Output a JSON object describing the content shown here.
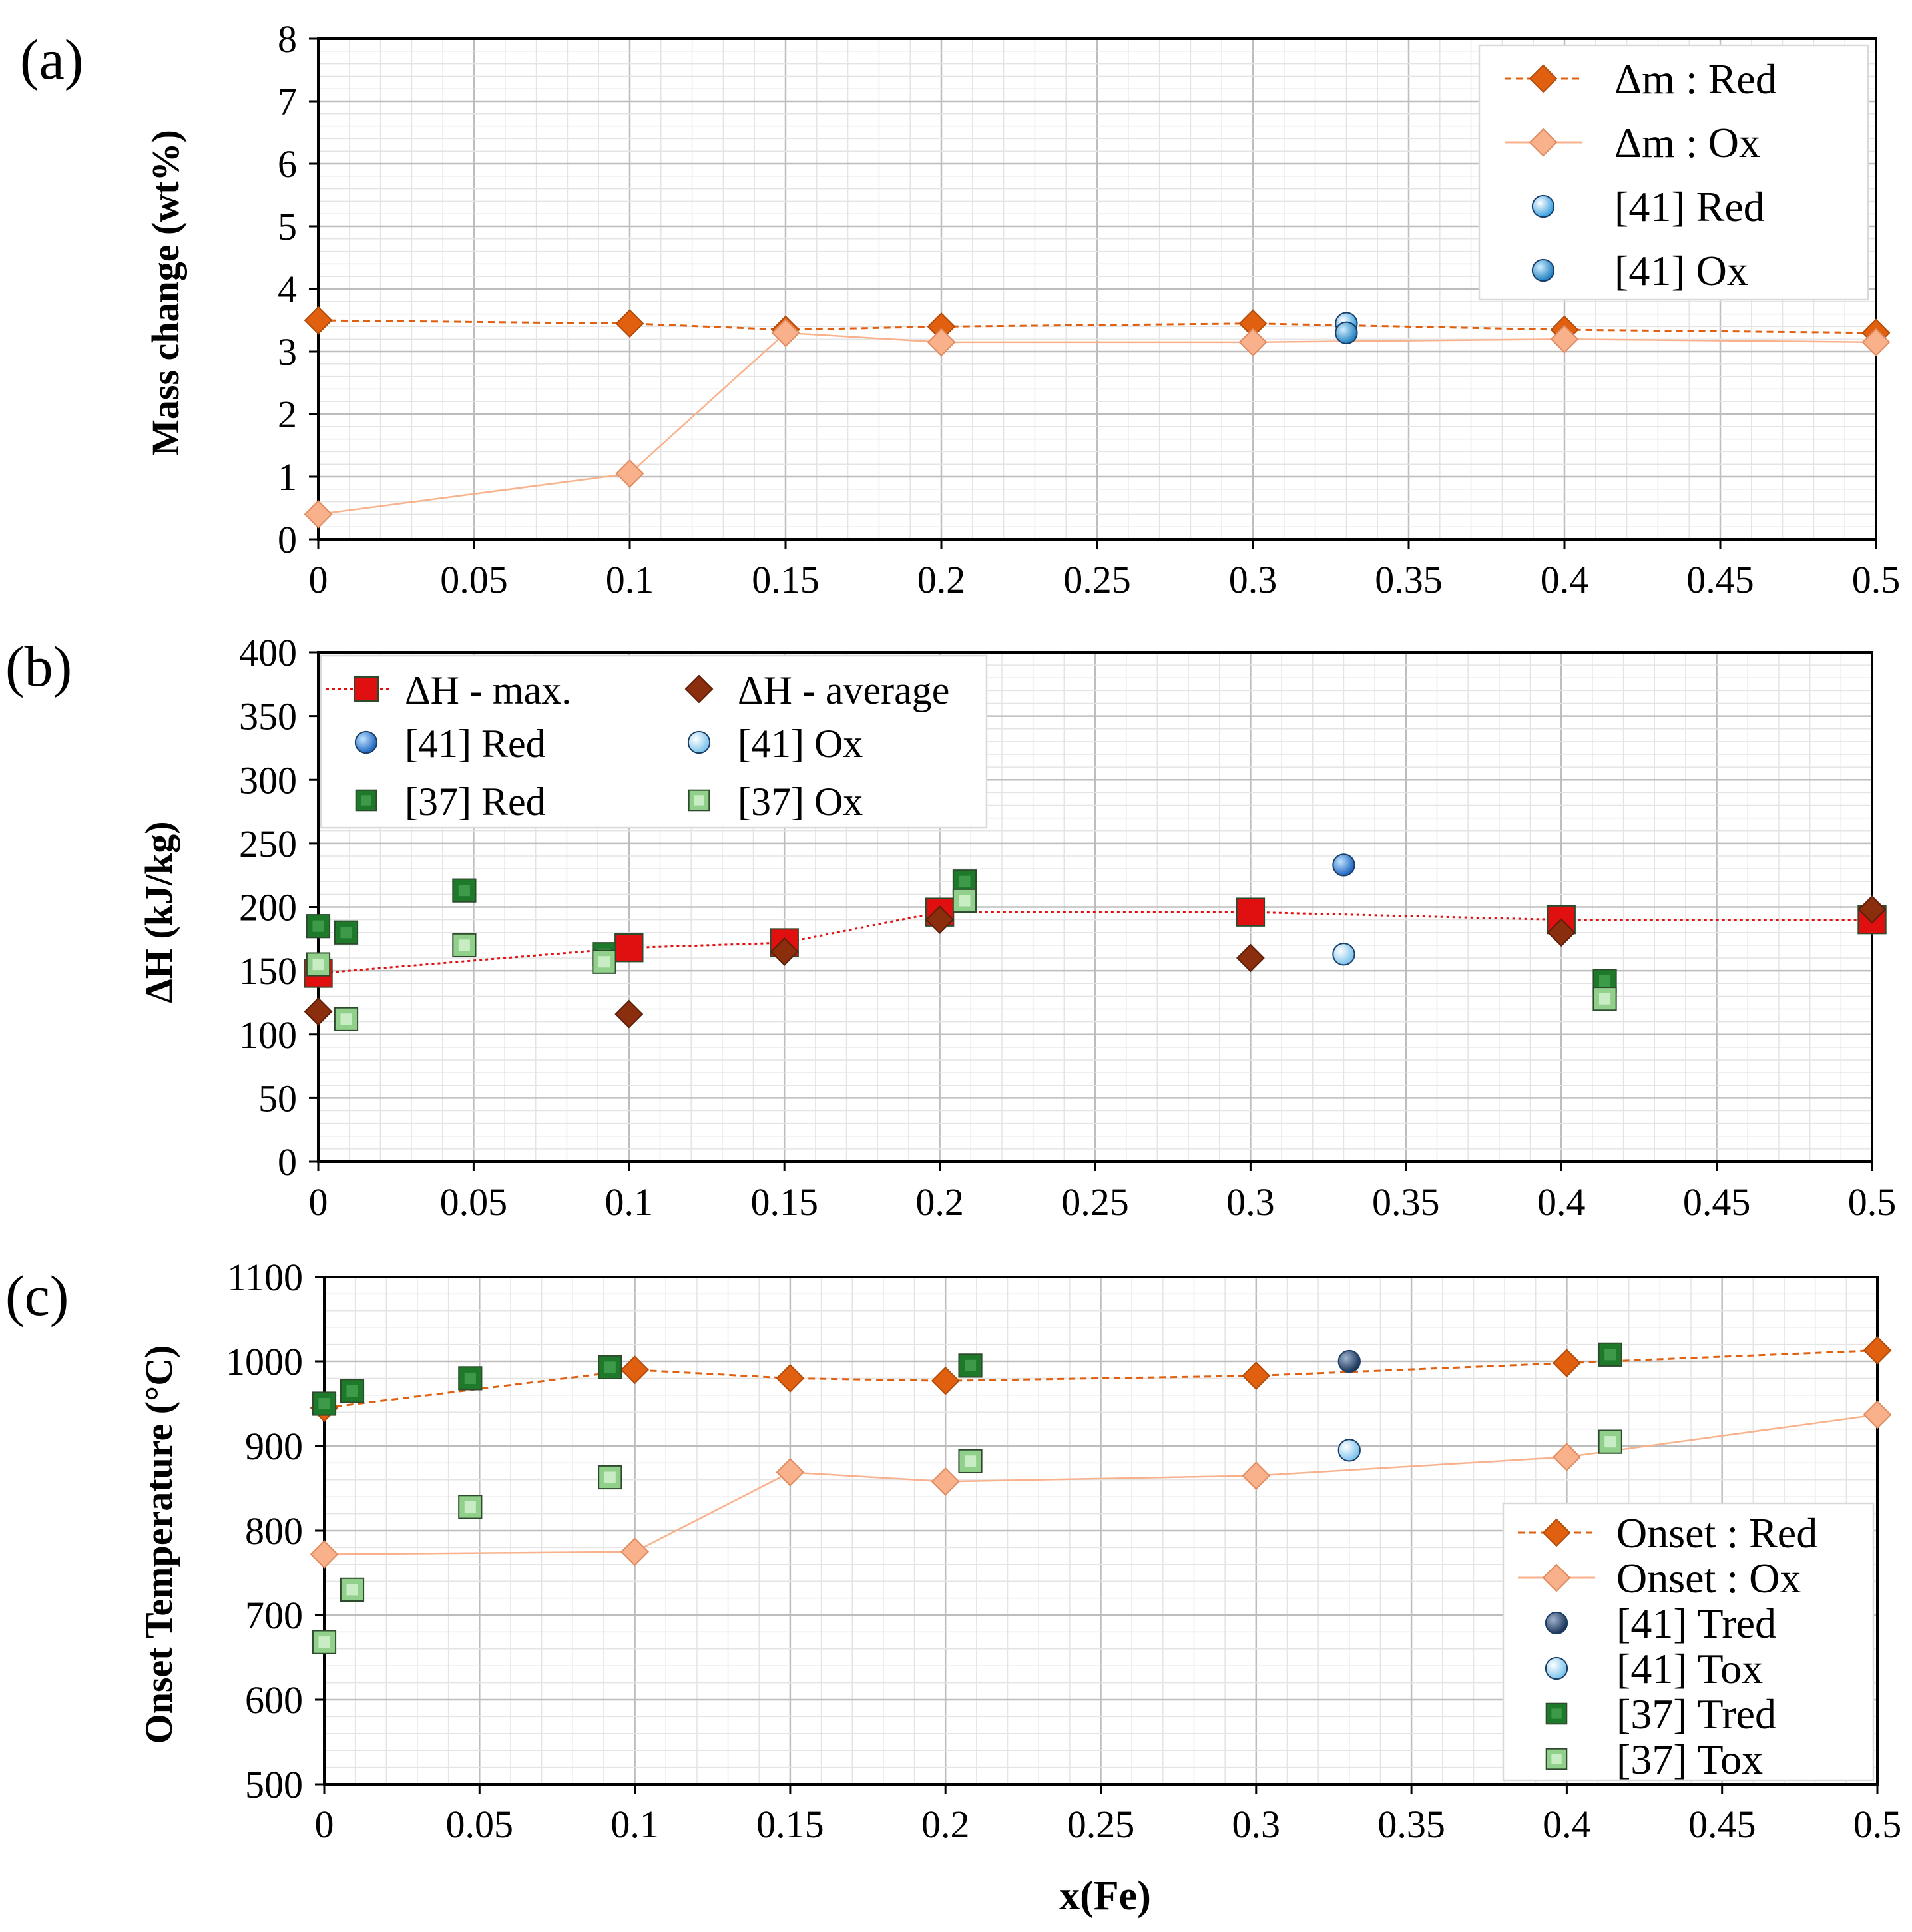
{
  "figure": {
    "xlabel": "x(Fe)"
  },
  "chart_data": [
    {
      "panel": "(a)",
      "type": "line",
      "xlabel": "",
      "ylabel": "Mass change (wt%)",
      "xlim": [
        0,
        0.5
      ],
      "ylim": [
        0,
        8
      ],
      "x_ticks": [
        "0",
        "0.05",
        "0.1",
        "0.15",
        "0.2",
        "0.25",
        "0.3",
        "0.35",
        "0.4",
        "0.45",
        "0.5"
      ],
      "y_ticks": [
        "0",
        "1",
        "2",
        "3",
        "4",
        "5",
        "6",
        "7",
        "8"
      ],
      "grid": true,
      "legend_position": "top-right",
      "series": [
        {
          "name": "Δm : Red",
          "marker": "diamond",
          "line": "dashed",
          "color": "#e06010",
          "x": [
            0,
            0.1,
            0.15,
            0.2,
            0.3,
            0.4,
            0.5
          ],
          "y": [
            3.5,
            3.45,
            3.35,
            3.4,
            3.45,
            3.35,
            3.3
          ]
        },
        {
          "name": "Δm : Ox",
          "marker": "diamond",
          "line": "solid",
          "color": "#f9b18c",
          "x": [
            0,
            0.1,
            0.15,
            0.2,
            0.3,
            0.4,
            0.5
          ],
          "y": [
            0.4,
            1.05,
            3.3,
            3.15,
            3.15,
            3.2,
            3.15
          ]
        },
        {
          "name": "[41] Red",
          "marker": "circle",
          "line": "none",
          "color": "#3aa0e0",
          "x": [
            0.33
          ],
          "y": [
            3.45
          ]
        },
        {
          "name": "[41] Ox",
          "marker": "circle",
          "line": "none",
          "color": "#1f7fc0",
          "x": [
            0.33
          ],
          "y": [
            3.3
          ]
        }
      ]
    },
    {
      "panel": "(b)",
      "type": "scatter",
      "xlabel": "",
      "ylabel": "ΔH (kJ/kg)",
      "xlim": [
        0,
        0.5
      ],
      "ylim": [
        0,
        400
      ],
      "x_ticks": [
        "0",
        "0.05",
        "0.1",
        "0.15",
        "0.2",
        "0.25",
        "0.3",
        "0.35",
        "0.4",
        "0.45",
        "0.5"
      ],
      "y_ticks": [
        "0",
        "50",
        "100",
        "150",
        "200",
        "250",
        "300",
        "350",
        "400"
      ],
      "grid": true,
      "legend_position": "top-left",
      "series": [
        {
          "name": "ΔH - max.",
          "marker": "square",
          "line": "dotted",
          "color": "#e01010",
          "x": [
            0,
            0.1,
            0.15,
            0.2,
            0.3,
            0.4,
            0.5
          ],
          "y": [
            148,
            168,
            172,
            196,
            196,
            190,
            190
          ]
        },
        {
          "name": "ΔH - average",
          "marker": "diamond",
          "line": "none",
          "color": "#8b2e0e",
          "x": [
            0,
            0.1,
            0.15,
            0.2,
            0.3,
            0.4,
            0.5
          ],
          "y": [
            118,
            116,
            165,
            190,
            160,
            180,
            198
          ]
        },
        {
          "name": "[41] Red",
          "marker": "circle",
          "line": "none",
          "color": "#1f66c0",
          "x": [
            0.33
          ],
          "y": [
            233
          ]
        },
        {
          "name": "[41] Ox",
          "marker": "circle",
          "line": "none",
          "color": "#8ccbf0",
          "x": [
            0.33
          ],
          "y": [
            163
          ]
        },
        {
          "name": "[37] Red",
          "marker": "square",
          "line": "none",
          "color": "#1e7a2a",
          "x": [
            0,
            0.009,
            0.047,
            0.092,
            0.208,
            0.414
          ],
          "y": [
            185,
            180,
            213,
            163,
            220,
            142
          ]
        },
        {
          "name": "[37] Ox",
          "marker": "square",
          "line": "none",
          "color": "#90d08a",
          "x": [
            0,
            0.009,
            0.047,
            0.092,
            0.208,
            0.414
          ],
          "y": [
            155,
            112,
            170,
            157,
            205,
            128
          ]
        }
      ]
    },
    {
      "panel": "(c)",
      "type": "line",
      "xlabel": "x(Fe)",
      "ylabel": "Onset Temperature (°C)",
      "xlim": [
        0,
        0.5
      ],
      "ylim": [
        500,
        1100
      ],
      "x_ticks": [
        "0",
        "0.05",
        "0.1",
        "0.15",
        "0.2",
        "0.25",
        "0.3",
        "0.35",
        "0.4",
        "0.45",
        "0.5"
      ],
      "y_ticks": [
        "500",
        "600",
        "700",
        "800",
        "900",
        "1000",
        "1100"
      ],
      "grid": true,
      "legend_position": "bottom-right",
      "series": [
        {
          "name": "Onset : Red",
          "marker": "diamond",
          "line": "dashed",
          "color": "#e06010",
          "x": [
            0,
            0.1,
            0.15,
            0.2,
            0.3,
            0.4,
            0.5
          ],
          "y": [
            945,
            990,
            980,
            977,
            983,
            998,
            1013
          ]
        },
        {
          "name": "Onset : Ox",
          "marker": "diamond",
          "line": "solid",
          "color": "#f9b18c",
          "x": [
            0,
            0.1,
            0.15,
            0.2,
            0.3,
            0.4,
            0.5
          ],
          "y": [
            772,
            775,
            869,
            858,
            865,
            887,
            937
          ]
        },
        {
          "name": "[41] Tred",
          "marker": "circle",
          "line": "none",
          "color": "#2a4a7a",
          "x": [
            0.33
          ],
          "y": [
            1000
          ]
        },
        {
          "name": "[41] Tox",
          "marker": "circle",
          "line": "none",
          "color": "#8ccbf0",
          "x": [
            0.33
          ],
          "y": [
            895
          ]
        },
        {
          "name": "[37] Tred",
          "marker": "square",
          "line": "none",
          "color": "#1e7a2a",
          "x": [
            0,
            0.009,
            0.047,
            0.092,
            0.208,
            0.414
          ],
          "y": [
            950,
            965,
            980,
            993,
            995,
            1008
          ]
        },
        {
          "name": "[37] Tox",
          "marker": "square",
          "line": "none",
          "color": "#90d08a",
          "x": [
            0,
            0.009,
            0.047,
            0.092,
            0.208,
            0.414
          ],
          "y": [
            668,
            730,
            828,
            863,
            882,
            905
          ]
        }
      ]
    }
  ]
}
